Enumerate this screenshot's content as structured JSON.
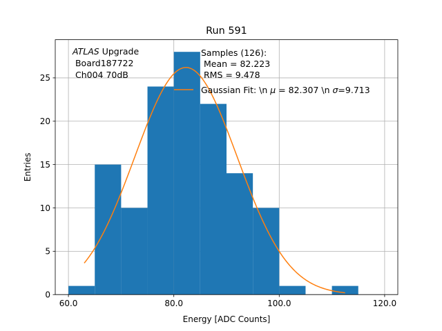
{
  "chart_data": {
    "type": "bar",
    "title": "Run 591",
    "xlabel": "Energy [ADC Counts]",
    "ylabel": "Entries",
    "xlim": [
      57.5,
      122.5
    ],
    "ylim": [
      0,
      29.4
    ],
    "xticks": [
      60,
      80,
      100,
      120
    ],
    "xtick_labels": [
      "60.0",
      "80.0",
      "100.0",
      "120.0"
    ],
    "yticks": [
      0,
      5,
      10,
      15,
      20,
      25
    ],
    "ytick_labels": [
      "0",
      "5",
      "10",
      "15",
      "20",
      "25"
    ],
    "grid": true,
    "bin_edges": [
      60,
      65,
      70,
      75,
      80,
      85,
      90,
      95,
      100,
      105,
      110,
      115
    ],
    "values": [
      1,
      15,
      10,
      24,
      28,
      22,
      14,
      10,
      1,
      0,
      1
    ],
    "bar_color": "#1f77b4",
    "fit": {
      "x_range": [
        63.0,
        112.5
      ],
      "mu": 82.307,
      "sigma": 9.713,
      "amplitude": 26.2,
      "color": "#ff7f0e"
    },
    "annotation": {
      "line1_italic": "ATLAS",
      "line1_rest": " Upgrade",
      "line2": " Board187722",
      "line3": " Ch004 70dB"
    },
    "legend": {
      "placement": "top-center",
      "samples_lines": [
        "Samples (126):",
        " Mean = 82.223",
        " RMS = 9.478"
      ],
      "fit_label_parts": [
        "Gaussian Fit: \\n ",
        "μ",
        " = 82.307 \\n ",
        "σ",
        "=9.713"
      ]
    }
  }
}
